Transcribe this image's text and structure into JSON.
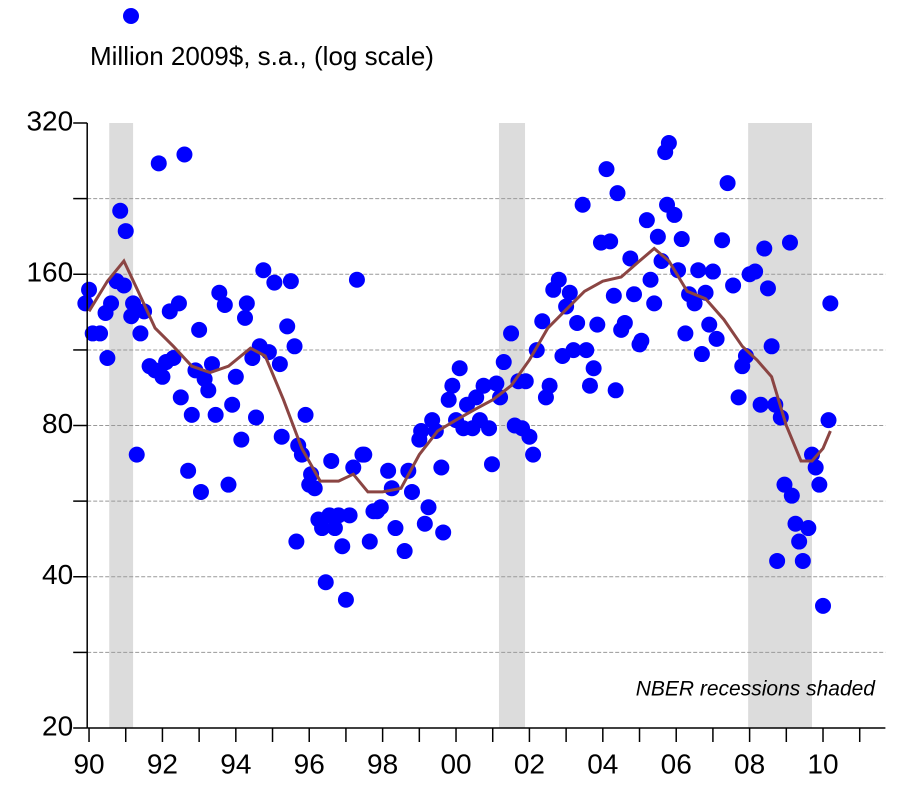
{
  "chart_data": {
    "type": "scatter",
    "y_label": "Million 2009$, s.a., (log scale)",
    "annotation": "NBER recessions shaded",
    "log_y": true,
    "grid": true,
    "xlim": [
      1989.95,
      2011.7
    ],
    "ylim": [
      20,
      320
    ],
    "xticks": [
      {
        "value": 1990,
        "label": "90"
      },
      {
        "value": 1992,
        "label": "92"
      },
      {
        "value": 1994,
        "label": "94"
      },
      {
        "value": 1996,
        "label": "96"
      },
      {
        "value": 1998,
        "label": "98"
      },
      {
        "value": 2000,
        "label": "00"
      },
      {
        "value": 2002,
        "label": "02"
      },
      {
        "value": 2004,
        "label": "04"
      },
      {
        "value": 2006,
        "label": "06"
      },
      {
        "value": 2008,
        "label": "08"
      },
      {
        "value": 2010,
        "label": "10"
      }
    ],
    "xminor_ticks": [
      1991,
      1993,
      1995,
      1997,
      1999,
      2001,
      2003,
      2005,
      2007,
      2009,
      2011
    ],
    "yticks": [
      20,
      40,
      80,
      160,
      320
    ],
    "yminor_ticks": [
      28.28,
      56.57,
      113.1,
      226.3
    ],
    "recessions": [
      [
        1990.55,
        1991.2
      ],
      [
        2001.17,
        2001.88
      ],
      [
        2007.96,
        2009.7
      ]
    ],
    "recession_color": "#dcdcdc",
    "series": [
      {
        "kind": "points",
        "color": "#0000ff",
        "x": [
          1989.9,
          1990.0,
          1990.1,
          1990.3,
          1990.45,
          1990.5,
          1990.6,
          1990.75,
          1990.85,
          1990.95,
          1991.0,
          1991.15,
          1991.2,
          1991.3,
          1991.4,
          1991.5,
          1991.65,
          1991.8,
          1991.9,
          1992.0,
          1992.1,
          1992.2,
          1992.3,
          1992.45,
          1992.5,
          1992.6,
          1992.7,
          1992.8,
          1992.9,
          1993.0,
          1993.05,
          1993.15,
          1993.25,
          1993.35,
          1993.45,
          1993.55,
          1993.7,
          1993.8,
          1993.9,
          1994.0,
          1994.15,
          1994.25,
          1994.3,
          1994.45,
          1994.55,
          1994.65,
          1994.75,
          1994.9,
          1995.05,
          1995.2,
          1995.25,
          1995.4,
          1995.5,
          1995.6,
          1995.7,
          1995.9,
          1995.65,
          1995.8,
          1996.0,
          1996.05,
          1996.15,
          1996.25,
          1996.35,
          1996.45,
          1996.55,
          1996.6,
          1996.7,
          1996.8,
          1996.9,
          1997.0,
          1997.1,
          1997.2,
          1997.3,
          1997.45,
          1997.5,
          1997.65,
          1997.75,
          1997.85,
          1997.95,
          1998.15,
          1998.25,
          1998.35,
          1998.6,
          1998.7,
          1998.8,
          1999.0,
          1999.05,
          1999.15,
          1999.25,
          1999.35,
          1999.45,
          1999.6,
          1999.65,
          1999.8,
          1999.9,
          2000.0,
          2000.1,
          2000.2,
          2000.3,
          2000.45,
          2000.55,
          2000.65,
          2000.75,
          2000.9,
          2000.98,
          2001.1,
          2001.2,
          2001.3,
          2001.5,
          2001.6,
          2001.7,
          2001.8,
          2001.9,
          2002.0,
          2002.1,
          2002.2,
          2002.35,
          2002.45,
          2002.55,
          2002.65,
          2002.8,
          2002.9,
          2003.0,
          2003.1,
          2003.2,
          2003.3,
          2003.45,
          2003.55,
          2003.65,
          2003.75,
          2003.85,
          2003.95,
          2004.1,
          2004.2,
          2004.3,
          2004.35,
          2004.4,
          2004.5,
          2004.6,
          2004.75,
          2004.85,
          2005.0,
          2005.05,
          2005.2,
          2005.3,
          2005.4,
          2005.5,
          2005.6,
          2005.7,
          2005.8,
          2005.75,
          2005.95,
          2006.05,
          2006.15,
          2006.25,
          2006.35,
          2006.5,
          2006.6,
          2006.7,
          2006.8,
          2006.9,
          2007.0,
          2007.1,
          2007.25,
          2007.4,
          2007.55,
          2007.7,
          2007.8,
          2007.9,
          2008.0,
          2008.15,
          2008.3,
          2008.4,
          2008.5,
          2008.6,
          2008.7,
          2008.75,
          2008.85,
          2008.95,
          2009.1,
          2009.15,
          2009.25,
          2009.35,
          2009.45,
          2009.6,
          2009.7,
          2009.8,
          2009.9,
          2010.0,
          2010.15,
          2010.2
        ],
        "values": [
          140,
          149,
          122,
          122,
          134,
          109,
          140,
          155,
          214,
          152,
          195,
          132,
          140,
          70,
          122,
          135,
          105,
          103,
          266,
          100,
          107,
          135,
          109,
          140,
          91,
          277,
          65,
          84,
          103,
          124,
          59,
          99,
          94,
          106,
          84,
          147,
          139,
          61,
          88,
          100,
          75,
          131,
          140,
          109,
          83,
          115,
          163,
          112,
          154,
          106,
          76,
          126,
          155,
          115,
          73,
          84,
          47,
          70,
          61,
          64,
          60,
          52,
          50,
          39,
          53,
          68,
          50,
          53,
          46,
          36,
          53,
          66,
          156,
          70,
          70,
          47,
          54,
          54,
          55,
          65,
          60,
          50,
          45,
          65,
          59,
          75,
          78,
          51,
          55,
          82,
          78,
          66,
          49,
          90,
          96,
          82,
          104,
          79,
          88,
          79,
          91,
          82,
          96,
          79,
          67,
          97,
          91,
          107,
          122,
          80,
          98,
          79,
          98,
          76,
          70,
          113,
          129,
          91,
          96,
          149,
          156,
          110,
          138,
          147,
          113,
          128,
          220,
          113,
          96,
          104,
          127,
          185,
          259,
          186,
          145,
          94,
          232,
          124,
          128,
          172,
          146,
          116,
          118,
          205,
          156,
          140,
          190,
          170,
          280,
          292,
          220,
          210,
          163,
          188,
          122,
          146,
          140,
          163,
          111,
          147,
          127,
          162,
          119,
          187,
          243,
          152,
          91,
          105,
          110,
          160,
          162,
          88,
          180,
          150,
          115,
          88,
          43,
          83,
          61,
          185,
          58,
          51,
          47,
          43,
          50,
          70,
          66,
          61,
          35,
          82,
          140
        ]
      },
      {
        "kind": "line",
        "color": "#8b4543",
        "x": [
          1990.0,
          1990.5,
          1990.95,
          1991.3,
          1991.8,
          1992.3,
          1992.8,
          1993.3,
          1993.8,
          1994.4,
          1994.8,
          1995.3,
          1995.8,
          1996.3,
          1996.8,
          1997.2,
          1997.6,
          1998.0,
          1998.5,
          1999.0,
          1999.5,
          2000.0,
          2000.5,
          2001.0,
          2001.5,
          2002.0,
          2002.5,
          2003.0,
          2003.5,
          2004.0,
          2004.5,
          2005.0,
          2005.4,
          2005.8,
          2006.3,
          2006.8,
          2007.3,
          2007.8,
          2008.2,
          2008.6,
          2009.0,
          2009.4,
          2009.7,
          2010.0,
          2010.2
        ],
        "values": [
          135,
          155,
          170,
          150,
          125,
          115,
          105,
          102,
          105,
          114,
          110,
          90,
          72,
          62,
          62,
          64,
          59,
          59,
          60,
          70,
          78,
          82,
          86,
          90,
          96,
          108,
          125,
          136,
          148,
          155,
          158,
          170,
          180,
          170,
          148,
          143,
          130,
          115,
          108,
          100,
          80,
          68,
          68,
          72,
          78
        ]
      }
    ]
  }
}
